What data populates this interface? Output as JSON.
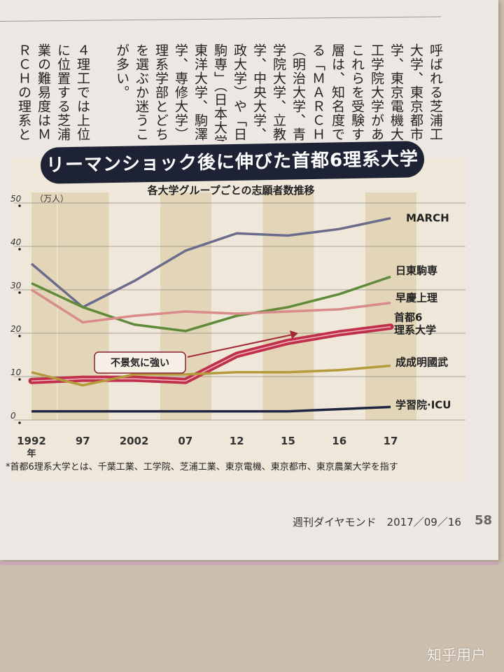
{
  "article_columns": [
    "呼ばれる芝浦工業",
    "大学、東京都市大",
    "学、東京電機大学、",
    "工学院大学がある。",
    "これらを受験する",
    "層は、知名度で勝",
    "る「ＭＡＲＣＨ」",
    "（明治大学、青山",
    "学院大学、立教大",
    "学、中央大学、法",
    "政大学）や「日東",
    "駒専」（日本大学、",
    "東洋大学、駒澤大",
    "学、専修大学）の",
    "理系学部とどちら",
    "を選ぶか迷うこと",
    "が多い。",
    "",
    " ４理工では上位",
    "に位置する芝浦工",
    "業の難易度はＭＡ",
    "ＲＣＨの理系と同"
  ],
  "chart_data": {
    "type": "line",
    "title": "リーマンショック後に伸びた首都6理系大学",
    "subtitle": "各大学グループごとの志願者数推移",
    "ylabel": "（万人）",
    "xlabel": "年",
    "categories": [
      "1992",
      "97",
      "2002",
      "07",
      "12",
      "15",
      "16",
      "17"
    ],
    "ylim": [
      0,
      50
    ],
    "yticks": [
      "0",
      "10",
      "20",
      "30",
      "40",
      "50"
    ],
    "grid": true,
    "series": [
      {
        "name": "MARCH",
        "values": [
          36,
          26,
          32,
          39,
          43,
          42.5,
          44,
          46.5
        ],
        "color": "#6b6b8c"
      },
      {
        "name": "日東駒専",
        "values": [
          31.5,
          26,
          22,
          20.5,
          24,
          26,
          29,
          33
        ],
        "color": "#5f8a3a"
      },
      {
        "name": "早慶上理",
        "values": [
          30,
          22.5,
          24,
          25,
          24.5,
          25,
          25.5,
          27
        ],
        "color": "#d98a8a"
      },
      {
        "name": "首都6理系大学",
        "values": [
          9,
          9.5,
          9.5,
          9,
          15,
          18,
          20,
          21.5
        ],
        "color": "#c0304a"
      },
      {
        "name": "成成明國武",
        "values": [
          11,
          8,
          10.5,
          10.5,
          11,
          11,
          11.5,
          12.5
        ],
        "color": "#b59a3c"
      },
      {
        "name": "学習院·ICU",
        "values": [
          2,
          2,
          2,
          2,
          2,
          2,
          2.5,
          3
        ],
        "color": "#1f2440"
      }
    ],
    "labels": {
      "first_row": "首都6",
      "second_row": "理系大学"
    },
    "annotation": "不景気に強い",
    "footnote": "*首都6理系大学とは、千葉工業、工学院、芝浦工業、東京電機、東京都市、東京農業大学を指す"
  },
  "footer": {
    "magazine": "週刊ダイヤモンド　2017／09／16",
    "page": "58"
  },
  "watermark": "知乎用户"
}
